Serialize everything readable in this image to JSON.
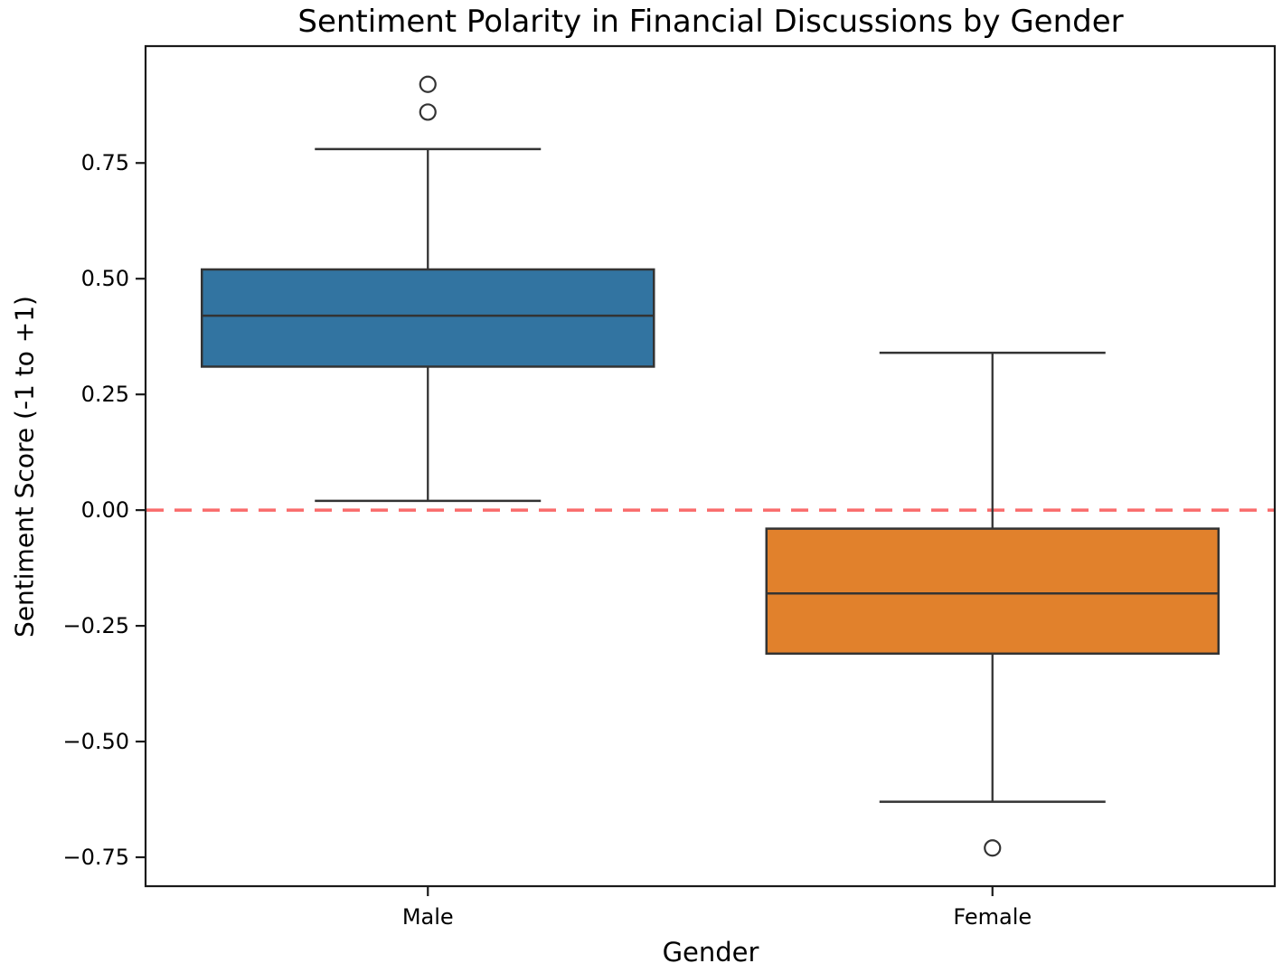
{
  "chart_data": {
    "type": "box",
    "title": "Sentiment Polarity in Financial Discussions by Gender",
    "xlabel": "Gender",
    "ylabel": "Sentiment Score (-1 to +1)",
    "categories": [
      "Male",
      "Female"
    ],
    "xlim": [
      -0.5,
      1.5
    ],
    "ylim": [
      -0.8125,
      1.0025
    ],
    "yticks": [
      0.75,
      0.5,
      0.25,
      0.0,
      -0.25,
      -0.5,
      -0.75
    ],
    "ytick_labels": [
      "0.75",
      "0.50",
      "0.25",
      "0.00",
      "−0.25",
      "−0.50",
      "−0.75"
    ],
    "grid": false,
    "legend": "none",
    "reference_line": {
      "y": 0.0,
      "style": "dashed",
      "color": "#f96b6b"
    },
    "box_line_color": "#333333",
    "spine_color": "#1a1a1a",
    "series": [
      {
        "name": "Male",
        "fill_color": "#3274a1",
        "stats": {
          "whisker_low": 0.02,
          "q1": 0.31,
          "median": 0.42,
          "q3": 0.52,
          "whisker_high": 0.78
        },
        "outliers": [
          0.86,
          0.92
        ]
      },
      {
        "name": "Female",
        "fill_color": "#e1812c",
        "stats": {
          "whisker_low": -0.63,
          "q1": -0.31,
          "median": -0.18,
          "q3": -0.04,
          "whisker_high": 0.34
        },
        "outliers": [
          -0.73
        ]
      }
    ]
  }
}
